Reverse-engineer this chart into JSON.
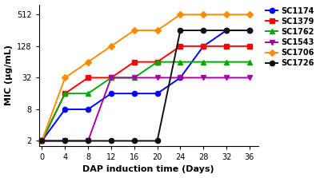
{
  "series": {
    "SC1174": {
      "x": [
        0,
        4,
        8,
        12,
        16,
        20,
        24,
        28,
        32,
        36
      ],
      "y": [
        2,
        8,
        8,
        16,
        16,
        16,
        32,
        128,
        256,
        256
      ],
      "color": "#0000FF",
      "marker": "o",
      "markersize": 4.5,
      "linewidth": 1.4
    },
    "SC1379": {
      "x": [
        0,
        4,
        8,
        12,
        16,
        20,
        24,
        28,
        32,
        36
      ],
      "y": [
        2,
        16,
        32,
        32,
        64,
        64,
        128,
        128,
        128,
        128
      ],
      "color": "#FF0000",
      "marker": "s",
      "markersize": 4.5,
      "linewidth": 1.4
    },
    "SC1762": {
      "x": [
        0,
        4,
        8,
        12,
        16,
        20,
        24,
        28,
        32,
        36
      ],
      "y": [
        2,
        16,
        16,
        32,
        32,
        64,
        64,
        64,
        64,
        64
      ],
      "color": "#00AA00",
      "marker": "^",
      "markersize": 4.5,
      "linewidth": 1.4
    },
    "SC1543": {
      "x": [
        0,
        4,
        8,
        12,
        16,
        20,
        24,
        28,
        32,
        36
      ],
      "y": [
        2,
        2,
        2,
        32,
        32,
        32,
        32,
        32,
        32,
        32
      ],
      "color": "#AA00AA",
      "marker": "v",
      "markersize": 4.5,
      "linewidth": 1.4
    },
    "SC1706": {
      "x": [
        0,
        4,
        8,
        12,
        16,
        20,
        24,
        28,
        32,
        36
      ],
      "y": [
        2,
        32,
        64,
        128,
        256,
        256,
        512,
        512,
        512,
        512
      ],
      "color": "#FF8C00",
      "marker": "D",
      "markersize": 4.5,
      "linewidth": 1.4
    },
    "SC1726": {
      "x": [
        0,
        4,
        8,
        12,
        16,
        20,
        24,
        28,
        32,
        36
      ],
      "y": [
        2,
        2,
        2,
        2,
        2,
        2,
        256,
        256,
        256,
        256
      ],
      "color": "#111111",
      "marker": "o",
      "markersize": 4.5,
      "linewidth": 1.4
    }
  },
  "xlabel": "DAP induction time (Days)",
  "ylabel": "MIC (μg/mL)",
  "yticks": [
    2,
    8,
    32,
    128,
    512
  ],
  "ytick_labels": [
    "2",
    "8",
    "32",
    "128",
    "512"
  ],
  "xticks": [
    0,
    4,
    8,
    12,
    16,
    20,
    24,
    28,
    32,
    36
  ],
  "xlim": [
    -0.5,
    37.5
  ],
  "ylim_log": [
    1.6,
    800
  ],
  "legend_order": [
    "SC1174",
    "SC1379",
    "SC1762",
    "SC1543",
    "SC1706",
    "SC1726"
  ],
  "background_color": "#FFFFFF",
  "figsize": [
    4.0,
    2.23
  ],
  "dpi": 100
}
